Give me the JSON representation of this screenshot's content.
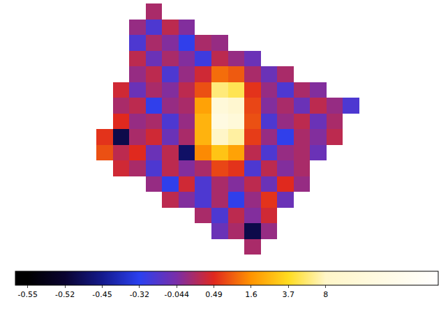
{
  "chart_data": {
    "type": "heatmap",
    "tick_labels": false,
    "color_range": [
      -0.56,
      21
    ],
    "color_ticks": [
      -0.55,
      -0.52,
      -0.45,
      -0.32,
      -0.044,
      0.49,
      1.6,
      3.7,
      8
    ],
    "cells": [
      [
        null,
        null,
        null,
        0.2,
        null,
        null,
        null,
        null,
        null,
        null,
        null,
        null,
        null,
        null,
        null,
        null
      ],
      [
        null,
        null,
        0.1,
        -0.2,
        0.3,
        0.0,
        null,
        null,
        null,
        null,
        null,
        null,
        null,
        null,
        null,
        null
      ],
      [
        null,
        null,
        -0.2,
        0.2,
        0.0,
        -0.3,
        0.2,
        0.1,
        null,
        null,
        null,
        null,
        null,
        null,
        null,
        null
      ],
      [
        null,
        null,
        0.3,
        -0.1,
        0.2,
        0.0,
        -0.25,
        0.3,
        0.1,
        -0.1,
        null,
        null,
        null,
        null,
        null,
        null
      ],
      [
        null,
        null,
        0.1,
        0.3,
        -0.2,
        0.1,
        0.4,
        1.2,
        1.0,
        0.2,
        -0.1,
        0.2,
        null,
        null,
        null,
        null
      ],
      [
        null,
        0.4,
        -0.1,
        0.2,
        0.0,
        0.3,
        0.9,
        6,
        5,
        0.6,
        0.1,
        -0.2,
        0.2,
        0.0,
        null,
        null
      ],
      [
        null,
        0.2,
        0.3,
        -0.3,
        0.1,
        0.2,
        2,
        12,
        10,
        0.8,
        0.0,
        0.2,
        -0.1,
        0.3,
        0.1,
        -0.2
      ],
      [
        null,
        0.5,
        0.1,
        0.2,
        -0.2,
        0.1,
        2.5,
        14,
        12,
        0.9,
        -0.2,
        0.1,
        0.3,
        -0.1,
        0.2,
        null
      ],
      [
        0.6,
        -0.5,
        0.2,
        0.4,
        -0.1,
        0.2,
        2.5,
        8,
        7,
        0.7,
        0.1,
        -0.3,
        0.2,
        0.0,
        0.3,
        null
      ],
      [
        0.9,
        0.3,
        0.5,
        -0.1,
        0.3,
        -0.48,
        1.5,
        3,
        2,
        0.3,
        -0.2,
        0.1,
        0.2,
        -0.1,
        null,
        null
      ],
      [
        null,
        0.4,
        0.2,
        -0.2,
        0.3,
        0.0,
        0.2,
        0.8,
        0.6,
        -0.2,
        0.3,
        0.0,
        0.2,
        null,
        null,
        null
      ],
      [
        null,
        null,
        null,
        0.1,
        -0.3,
        0.4,
        -0.2,
        0.2,
        0.0,
        0.3,
        -0.1,
        0.5,
        0.1,
        null,
        null,
        null
      ],
      [
        null,
        null,
        null,
        null,
        0.3,
        0.0,
        -0.2,
        0.2,
        -0.3,
        0.1,
        0.6,
        -0.1,
        null,
        null,
        null,
        null
      ],
      [
        null,
        null,
        null,
        null,
        null,
        null,
        0.2,
        -0.2,
        0.3,
        0.0,
        0.4,
        null,
        null,
        null,
        null,
        null
      ],
      [
        null,
        null,
        null,
        null,
        null,
        null,
        null,
        -0.1,
        0.2,
        -0.5,
        0.1,
        null,
        null,
        null,
        null,
        null
      ],
      [
        null,
        null,
        null,
        null,
        null,
        null,
        null,
        null,
        null,
        0.2,
        null,
        null,
        null,
        null,
        null,
        null
      ]
    ]
  }
}
